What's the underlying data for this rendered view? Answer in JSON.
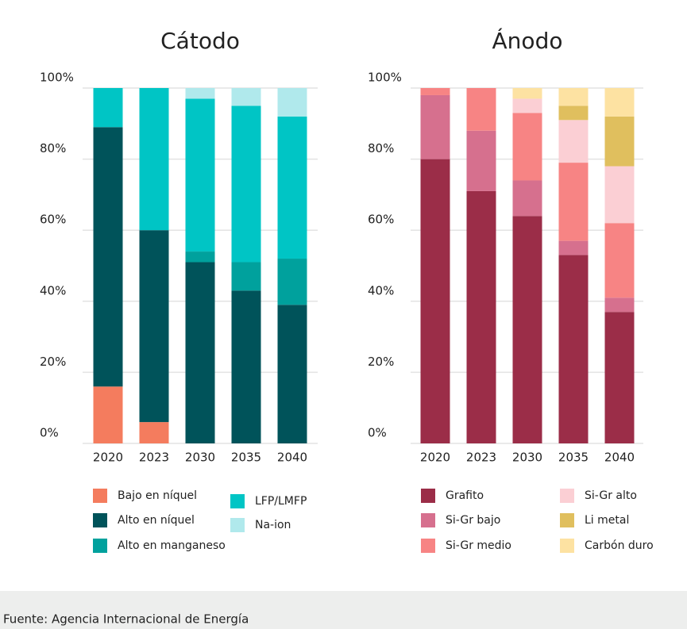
{
  "chart_data": [
    {
      "type": "stacked-bar",
      "title": "Cátodo",
      "categories": [
        "2020",
        "2023",
        "2030",
        "2035",
        "2040"
      ],
      "ylim": [
        0,
        100
      ],
      "yticks": [
        {
          "value": 0,
          "label": "0%"
        },
        {
          "value": 20,
          "label": "20%"
        },
        {
          "value": 40,
          "label": "40%"
        },
        {
          "value": 60,
          "label": "60%"
        },
        {
          "value": 80,
          "label": "80%"
        },
        {
          "value": 100,
          "label": "100%"
        }
      ],
      "grid": true,
      "series": [
        {
          "name": "Bajo en níquel",
          "color": "#f47c5e",
          "values": [
            16,
            6,
            0,
            0,
            0
          ]
        },
        {
          "name": "Alto en níquel",
          "color": "#00535a",
          "values": [
            73,
            54,
            51,
            43,
            39
          ]
        },
        {
          "name": "Alto en manganeso",
          "color": "#00a19d",
          "values": [
            0,
            0,
            3,
            8,
            13
          ]
        },
        {
          "name": "LFP/LMFP",
          "color": "#00c5c5",
          "values": [
            11,
            40,
            43,
            44,
            40
          ]
        },
        {
          "name": "Na-ion",
          "color": "#b0e9ec",
          "values": [
            0,
            0,
            3,
            5,
            8
          ]
        }
      ]
    },
    {
      "type": "stacked-bar",
      "title": "Ánodo",
      "categories": [
        "2020",
        "2023",
        "2030",
        "2035",
        "2040"
      ],
      "ylim": [
        0,
        100
      ],
      "yticks": [
        {
          "value": 0,
          "label": "0%"
        },
        {
          "value": 20,
          "label": "20%"
        },
        {
          "value": 40,
          "label": "40%"
        },
        {
          "value": 60,
          "label": "60%"
        },
        {
          "value": 80,
          "label": "80%"
        },
        {
          "value": 100,
          "label": "100%"
        }
      ],
      "grid": true,
      "series": [
        {
          "name": "Grafito",
          "color": "#9b2d48",
          "values": [
            80,
            71,
            64,
            53,
            37
          ]
        },
        {
          "name": "Si-Gr bajo",
          "color": "#d6708e",
          "values": [
            18,
            17,
            10,
            4,
            4
          ]
        },
        {
          "name": "Si-Gr medio",
          "color": "#f78484",
          "values": [
            2,
            12,
            19,
            22,
            21
          ]
        },
        {
          "name": "Si-Gr alto",
          "color": "#fbcfd4",
          "values": [
            0,
            0,
            4,
            12,
            16
          ]
        },
        {
          "name": "Li metal",
          "color": "#e0bf5e",
          "values": [
            0,
            0,
            0,
            4,
            14
          ]
        },
        {
          "name": "Carbón duro",
          "color": "#fde2a2",
          "values": [
            0,
            0,
            3,
            5,
            8
          ]
        }
      ]
    }
  ],
  "footer": "Fuente: Agencia Internacional de Energía"
}
